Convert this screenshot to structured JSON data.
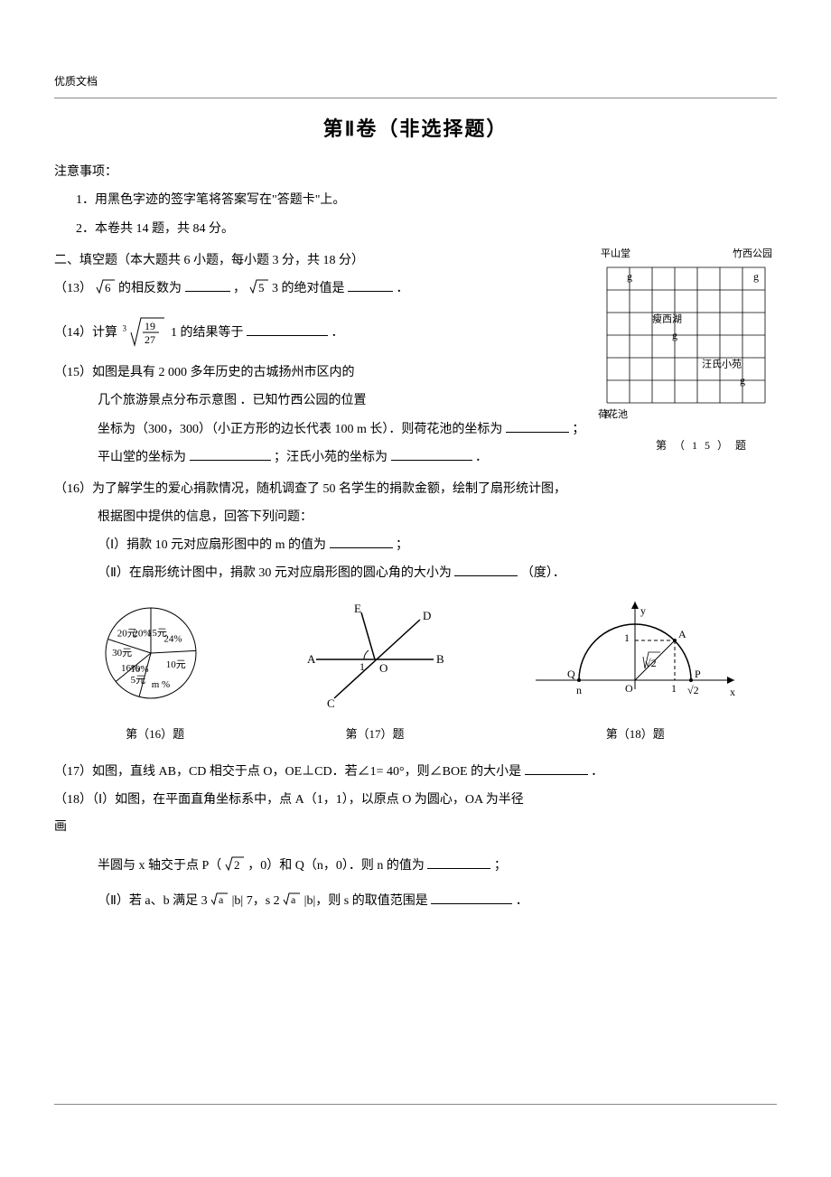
{
  "header": {
    "doc_quality": "优质文档"
  },
  "section_title": "第Ⅱ卷（非选择题）",
  "notice": {
    "heading": "注意事项：",
    "line1": "1．用黑色字迹的签字笔将答案写在\"答题卡\"上。",
    "line2": "2．本卷共  14 题，共  84 分。"
  },
  "part2": {
    "heading": "二、填空题（本大题共    6 小题，每小题  3 分，共  18 分）"
  },
  "q13": {
    "prefix": "（13）",
    "seg1_pre": "√6 的相反数为",
    "seg1_mid": "，",
    "seg2_pre": "√5  3 的绝对值是",
    "seg2_end": "．"
  },
  "q14": {
    "prefix": "（14）计算",
    "root_index": "3",
    "frac_num": "19",
    "frac_den": "27",
    "plus": "1 的结果等于",
    "end": "．"
  },
  "q15": {
    "prefix": "（15）如图是具有  2 000 多年历史的古城扬州市区内的",
    "line2": "几个旅游景点分布示意图  ．已知竹西公园的位置",
    "line3_a": "坐标为（300，300）（小正方形的边长代表    100 m 长）．则荷花池的坐标为",
    "line3_end": "；",
    "line4_a": "平山堂的坐标为",
    "line4_b": "；汪氏小苑的坐标为",
    "line4_end": "．"
  },
  "q16": {
    "prefix": "（16）为了解学生的爱心捐款情况，随机调查了    50 名学生的捐款金额，绘制了扇形统计图，",
    "line2": "根据图中提供的信息，回答下列问题：",
    "sub1_a": "（Ⅰ）捐款  10 元对应扇形图中的  m 的值为",
    "sub1_end": "；",
    "sub2_a": "（Ⅱ）在扇形统计图中，捐款    30 元对应扇形图的圆心角的大小为",
    "sub2_end": "（度）．"
  },
  "pie": {
    "type": "pie",
    "slices": [
      {
        "label": "15元",
        "pct": "24%",
        "start": -90,
        "end": -3,
        "label_r": 20,
        "label_ang": -70,
        "pct_r": 32,
        "pct_ang": -40
      },
      {
        "label": "10元",
        "pct": "m %",
        "start": -3,
        "end": 105,
        "label_r": 32,
        "label_ang": 30,
        "pct_r": 32,
        "pct_ang": 70
      },
      {
        "label": "5元",
        "pct": "10%",
        "start": 105,
        "end": 141,
        "label_r": 36,
        "label_ang": 113,
        "pct_r": 18,
        "pct_ang": 134
      },
      {
        "label": "30元",
        "pct": "16%",
        "start": 141,
        "end": 198,
        "label_r": 32,
        "label_ang": 175,
        "pct_r": 26,
        "pct_ang": 152
      },
      {
        "label": "20元",
        "pct": "20%",
        "start": 198,
        "end": 270,
        "label_r": 32,
        "label_ang": 215,
        "pct_r": 28,
        "pct_ang": 250
      }
    ],
    "radius": 50,
    "stroke": "#000000",
    "fill": "#ffffff",
    "fontsize": 11,
    "caption": "第（16）题"
  },
  "lines_fig": {
    "A": "A",
    "B": "B",
    "C": "C",
    "D": "D",
    "E": "E",
    "O": "O",
    "ang": "1",
    "caption": "第（17）题",
    "stroke": "#000000",
    "line_width": 1.5
  },
  "semicircle": {
    "xlabel": "x",
    "ylabel": "y",
    "P": "P",
    "Q": "Q",
    "O": "O",
    "A": "A",
    "one": "1",
    "sqrt2": "√2",
    "n": "n",
    "caption": "第（18）题",
    "axis_color": "#000000",
    "curve_color": "#000000",
    "dash": "4,3"
  },
  "map": {
    "top_left": "平山堂",
    "top_right": "竹西公园",
    "mid": "瘦西湖",
    "lower_right": "汪氏小苑",
    "bottom_left": "荷花池",
    "caption": "第（15）题",
    "grid_color": "#000000",
    "cols": 7,
    "rows": 6,
    "cell": 25,
    "glyph": "g"
  },
  "q17": {
    "text_a": "（17）如图，直线 AB，CD 相交于点  O，OE⊥CD．若∠1= 40°，则∠BOE 的大小是",
    "end": "．"
  },
  "q18": {
    "line1": "（18）（Ⅰ）如图，在平面直角坐标系中，点      A（1，1），以原点  O 为圆心，OA 为半径",
    "line_hua": "画",
    "line2_a": "半圆与  x 轴交于点  P（√2，0）和 Q（n，0）．则 n 的值为",
    "line2_end": "；",
    "line3_a": "（Ⅱ）若 a、b 满足 3√a  |b|  7，s  2√a  |b|，则 s 的取值范围是",
    "line3_end": "．"
  }
}
